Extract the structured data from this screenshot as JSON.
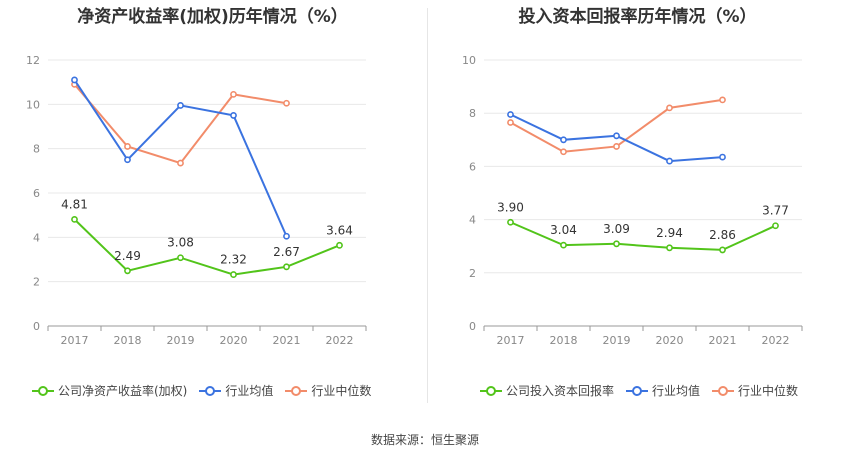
{
  "chart_data": [
    {
      "type": "line",
      "title": "净资产收益率(加权)历年情况（%）",
      "categories": [
        "2017",
        "2018",
        "2019",
        "2020",
        "2021",
        "2022"
      ],
      "ylim": [
        0,
        12
      ],
      "yticks": [
        0,
        2,
        4,
        6,
        8,
        10,
        12
      ],
      "grid": true,
      "legend_position": "bottom",
      "series": [
        {
          "name": "公司净资产收益率(加权)",
          "color": "#52c41a",
          "values": [
            4.81,
            2.49,
            3.08,
            2.32,
            2.67,
            3.64
          ],
          "labels": [
            "4.81",
            "2.49",
            "3.08",
            "2.32",
            "2.67",
            "3.64"
          ]
        },
        {
          "name": "行业均值",
          "color": "#3b73e0",
          "values": [
            11.1,
            7.5,
            9.95,
            9.5,
            4.05,
            null
          ]
        },
        {
          "name": "行业中位数",
          "color": "#f28c6a",
          "values": [
            10.9,
            8.1,
            7.35,
            10.45,
            10.05,
            null
          ]
        }
      ]
    },
    {
      "type": "line",
      "title": "投入资本回报率历年情况（%）",
      "categories": [
        "2017",
        "2018",
        "2019",
        "2020",
        "2021",
        "2022"
      ],
      "ylim": [
        0,
        10
      ],
      "yticks": [
        0,
        2,
        4,
        6,
        8,
        10
      ],
      "grid": true,
      "legend_position": "bottom",
      "series": [
        {
          "name": "公司投入资本回报率",
          "color": "#52c41a",
          "values": [
            3.9,
            3.04,
            3.09,
            2.94,
            2.86,
            3.77
          ],
          "labels": [
            "3.90",
            "3.04",
            "3.09",
            "2.94",
            "2.86",
            "3.77"
          ]
        },
        {
          "name": "行业均值",
          "color": "#3b73e0",
          "values": [
            7.95,
            7.0,
            7.15,
            6.2,
            6.35,
            null
          ]
        },
        {
          "name": "行业中位数",
          "color": "#f28c6a",
          "values": [
            7.65,
            6.55,
            6.75,
            8.2,
            8.5,
            null
          ]
        }
      ]
    }
  ],
  "footer": "数据来源：恒生聚源"
}
